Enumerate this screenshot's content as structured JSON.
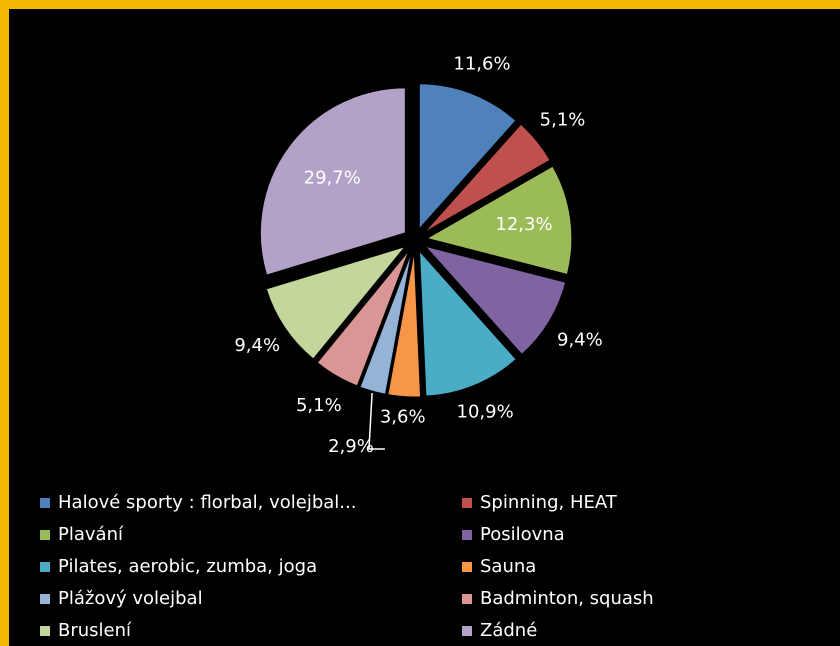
{
  "chart_data": {
    "type": "pie",
    "categories": [
      "Halové sporty : florbal, volejbal...",
      "Spinning, HEAT",
      "Plavání",
      "Posilovna",
      "Pilates, aerobic, zumba, joga",
      "Sauna",
      "Plážový volejbal",
      "Badminton, squash",
      "Bruslení",
      "Zádné"
    ],
    "values": [
      11.6,
      5.1,
      12.3,
      9.4,
      10.9,
      3.6,
      2.9,
      5.1,
      9.4,
      29.7
    ],
    "value_labels": [
      "11,6%",
      "5,1%",
      "12,3%",
      "9,4%",
      "10,9%",
      "3,6%",
      "2,9%",
      "5,1%",
      "9,4%",
      "29,7%"
    ],
    "colors": [
      "#4f81bd",
      "#c0504d",
      "#9bbb59",
      "#8064a2",
      "#4bacc6",
      "#f79646",
      "#95b3d7",
      "#d99694",
      "#c3d69b",
      "#b3a2c7"
    ],
    "legend": "bottom"
  }
}
